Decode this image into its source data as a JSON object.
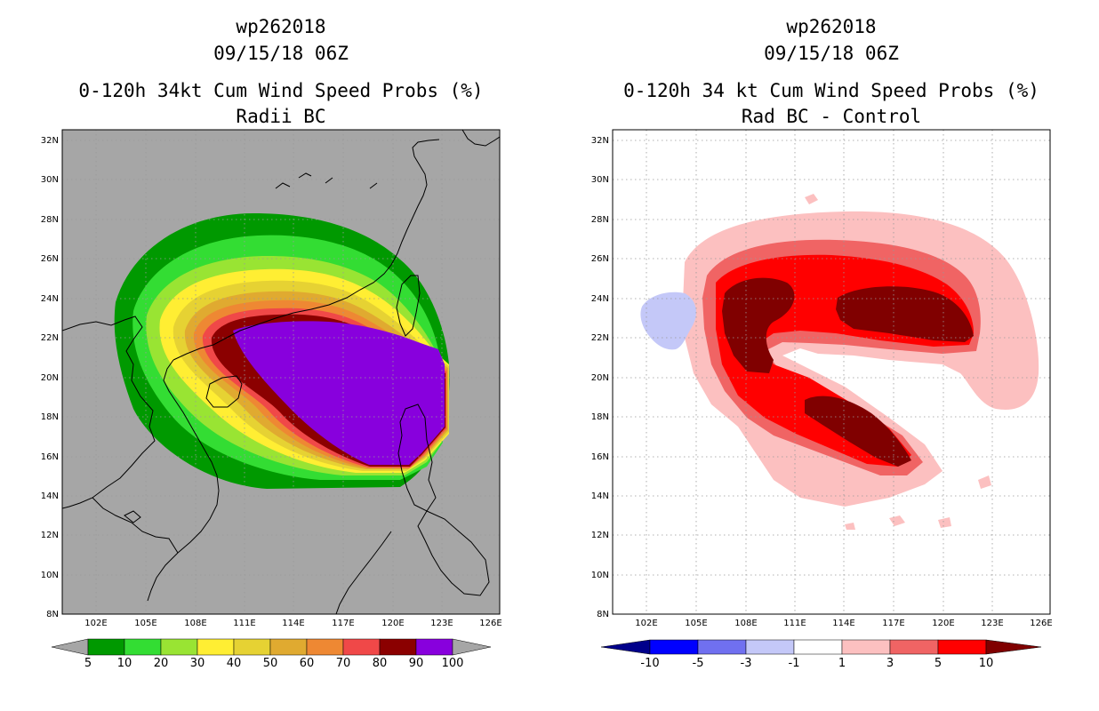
{
  "left": {
    "line1": "wp262018",
    "line2": "09/15/18 06Z",
    "line3": "0-120h 34kt Cum Wind Speed Probs (%)",
    "line4": "Radii BC",
    "colorbar": {
      "colors": [
        "#009900",
        "#33dd33",
        "#99e433",
        "#ffee33",
        "#e6d233",
        "#e0aa30",
        "#ee8833",
        "#f04848",
        "#8b0000",
        "#8800dd"
      ],
      "labels": [
        "5",
        "10",
        "20",
        "30",
        "40",
        "50",
        "60",
        "70",
        "80",
        "90",
        "100"
      ]
    },
    "background": "#a6a6a6"
  },
  "right": {
    "line1": "wp262018",
    "line2": "09/15/18 06Z",
    "line3": "0-120h 34 kt Cum Wind Speed Probs (%)",
    "line4": "Rad BC - Control",
    "colorbar": {
      "colors": [
        "#00008b",
        "#0000ff",
        "#7070f0",
        "#c4c8f8",
        "#ffffff",
        "#fcc0c0",
        "#f06464",
        "#ff0000",
        "#800000"
      ],
      "labels": [
        "-10",
        "-5",
        "-3",
        "-1",
        "1",
        "3",
        "5",
        "10"
      ]
    }
  },
  "axes": {
    "lat_labels": [
      "32N",
      "30N",
      "28N",
      "26N",
      "24N",
      "22N",
      "20N",
      "18N",
      "16N",
      "14N",
      "12N",
      "10N",
      "8N"
    ],
    "lon_labels": [
      "102E",
      "105E",
      "108E",
      "111E",
      "114E",
      "117E",
      "120E",
      "123E",
      "126E"
    ]
  },
  "colors": {
    "coast": "#000000",
    "grid": "#999999"
  }
}
